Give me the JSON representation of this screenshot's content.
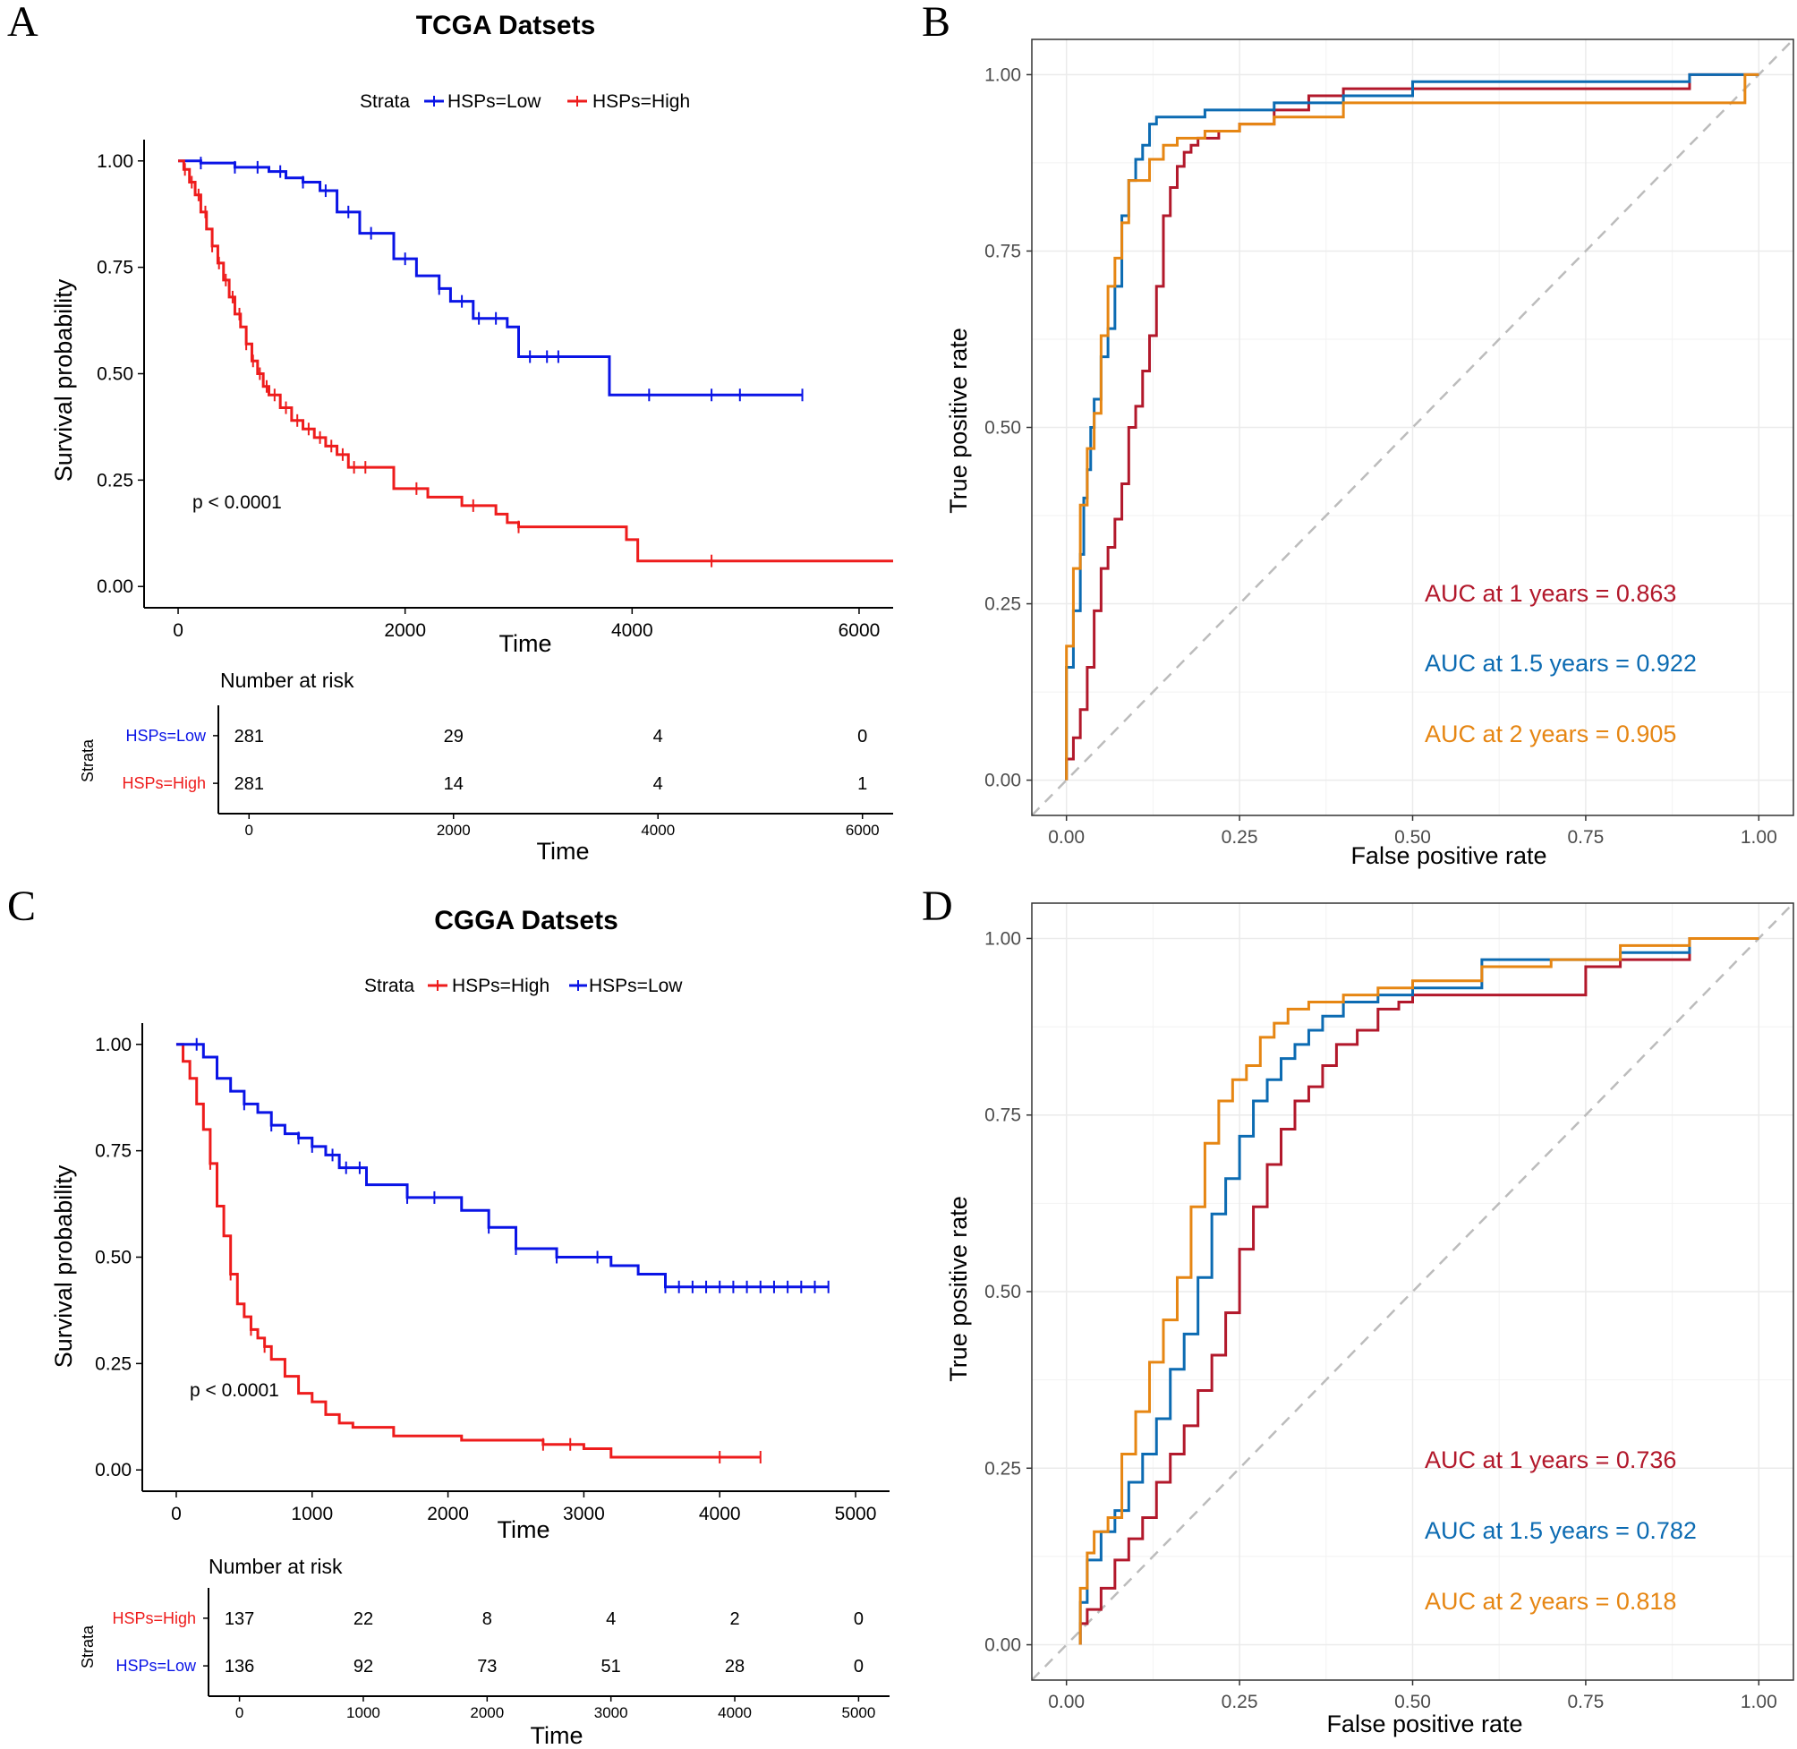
{
  "panel_letters": [
    "A",
    "B",
    "C",
    "D"
  ],
  "colors": {
    "low": "#0a14e6",
    "high": "#ee1c1c",
    "roc_1y": "#b2182b",
    "roc_15y": "#0c6bb2",
    "roc_2y": "#e68613",
    "diag": "#bcbcbc",
    "grid": "#ebebeb",
    "axis": "#333333"
  },
  "chart_data": [
    {
      "panel": "A",
      "type": "line",
      "title": "TCGA Datsets",
      "xlabel": "Time",
      "ylabel": "Survival probability",
      "xlim": [
        -300,
        6300
      ],
      "ylim": [
        -0.05,
        1.05
      ],
      "x_ticks": [
        0,
        2000,
        4000,
        6000
      ],
      "y_ticks": [
        "0.00",
        "0.25",
        "0.50",
        "0.75",
        "1.00"
      ],
      "legend_title": "Strata",
      "annotation": "p < 0.0001",
      "series": [
        {
          "name": "HSPs=Low",
          "color_key": "low",
          "x": [
            0,
            200,
            500,
            800,
            950,
            1100,
            1250,
            1400,
            1600,
            1900,
            2100,
            2300,
            2400,
            2600,
            2900,
            3000,
            3450,
            3800,
            4100,
            5500
          ],
          "y": [
            1.0,
            0.995,
            0.985,
            0.975,
            0.96,
            0.95,
            0.93,
            0.88,
            0.83,
            0.77,
            0.73,
            0.7,
            0.67,
            0.63,
            0.61,
            0.54,
            0.54,
            0.45,
            0.45,
            0.45
          ],
          "censor_x": [
            200,
            500,
            700,
            900,
            1100,
            1300,
            1500,
            1700,
            2000,
            2300,
            2500,
            2650,
            2800,
            3100,
            3250,
            3350,
            4150,
            4700,
            4950,
            5500
          ]
        },
        {
          "name": "HSPs=High",
          "color_key": "high",
          "x": [
            0,
            50,
            100,
            150,
            200,
            250,
            300,
            350,
            400,
            450,
            500,
            550,
            600,
            650,
            700,
            750,
            800,
            900,
            1000,
            1100,
            1200,
            1300,
            1400,
            1500,
            1600,
            1900,
            2200,
            2500,
            2800,
            2900,
            3000,
            3300,
            3500,
            3950,
            4050,
            6300
          ],
          "y": [
            1.0,
            0.98,
            0.95,
            0.92,
            0.88,
            0.84,
            0.8,
            0.76,
            0.72,
            0.68,
            0.64,
            0.61,
            0.57,
            0.53,
            0.5,
            0.47,
            0.45,
            0.42,
            0.39,
            0.37,
            0.35,
            0.33,
            0.31,
            0.28,
            0.28,
            0.23,
            0.21,
            0.19,
            0.17,
            0.15,
            0.14,
            0.14,
            0.14,
            0.11,
            0.06,
            0.06
          ],
          "censor_x": [
            60,
            120,
            180,
            240,
            300,
            360,
            420,
            480,
            540,
            600,
            660,
            720,
            780,
            850,
            950,
            1050,
            1150,
            1250,
            1350,
            1450,
            1550,
            1650,
            2100,
            2600,
            3000,
            4700
          ]
        }
      ],
      "risk_table": {
        "title": "Number at risk",
        "strata_label": "Strata",
        "xlabel": "Time",
        "times": [
          0,
          2000,
          4000,
          6000
        ],
        "rows": [
          {
            "name": "HSPs=Low",
            "color_key": "low",
            "counts": [
              "281",
              "29",
              "4",
              "0"
            ]
          },
          {
            "name": "HSPs=High",
            "color_key": "high",
            "counts": [
              "281",
              "14",
              "4",
              "1"
            ]
          }
        ]
      }
    },
    {
      "panel": "B",
      "type": "line",
      "title": "",
      "xlabel": "False positive rate",
      "ylabel": "True positive rate",
      "xlim": [
        -0.05,
        1.05
      ],
      "ylim": [
        -0.05,
        1.05
      ],
      "ticks": [
        "0.00",
        "0.25",
        "0.50",
        "0.75",
        "1.00"
      ],
      "series": [
        {
          "name": "AUC at 1 years = 0.863",
          "color_key": "roc_1y",
          "x": [
            0,
            0.01,
            0.02,
            0.03,
            0.04,
            0.05,
            0.06,
            0.07,
            0.08,
            0.09,
            0.1,
            0.11,
            0.12,
            0.13,
            0.14,
            0.15,
            0.16,
            0.17,
            0.18,
            0.19,
            0.2,
            0.22,
            0.25,
            0.3,
            0.35,
            0.4,
            0.5,
            0.6,
            0.7,
            0.8,
            0.9,
            1.0
          ],
          "y": [
            0,
            0.03,
            0.06,
            0.1,
            0.16,
            0.24,
            0.3,
            0.33,
            0.37,
            0.42,
            0.5,
            0.53,
            0.58,
            0.63,
            0.7,
            0.8,
            0.84,
            0.87,
            0.89,
            0.9,
            0.91,
            0.91,
            0.92,
            0.93,
            0.95,
            0.97,
            0.98,
            0.98,
            0.98,
            0.98,
            0.98,
            1.0
          ]
        },
        {
          "name": "AUC at 1.5 years = 0.922",
          "color_key": "roc_15y",
          "x": [
            0,
            0.01,
            0.02,
            0.025,
            0.03,
            0.035,
            0.04,
            0.05,
            0.06,
            0.07,
            0.08,
            0.09,
            0.1,
            0.11,
            0.12,
            0.13,
            0.2,
            0.3,
            0.4,
            0.5,
            0.6,
            0.7,
            0.8,
            0.9,
            1.0
          ],
          "y": [
            0,
            0.16,
            0.24,
            0.32,
            0.4,
            0.44,
            0.5,
            0.54,
            0.6,
            0.64,
            0.7,
            0.8,
            0.85,
            0.88,
            0.9,
            0.93,
            0.94,
            0.95,
            0.96,
            0.97,
            0.99,
            0.99,
            0.99,
            0.99,
            1.0
          ]
        },
        {
          "name": "AUC at 2 years = 0.905",
          "color_key": "roc_2y",
          "x": [
            0,
            0.01,
            0.02,
            0.03,
            0.04,
            0.05,
            0.06,
            0.07,
            0.08,
            0.09,
            0.1,
            0.12,
            0.14,
            0.16,
            0.2,
            0.25,
            0.3,
            0.4,
            0.5,
            0.6,
            0.7,
            0.8,
            0.9,
            0.98,
            1.0
          ],
          "y": [
            0,
            0.19,
            0.3,
            0.39,
            0.47,
            0.52,
            0.63,
            0.7,
            0.74,
            0.79,
            0.85,
            0.85,
            0.88,
            0.9,
            0.91,
            0.92,
            0.93,
            0.94,
            0.96,
            0.96,
            0.96,
            0.96,
            0.96,
            0.96,
            1.0
          ]
        }
      ],
      "legend_labels": [
        "AUC at 1 years = 0.863",
        "AUC at 1.5 years = 0.922",
        "AUC at 2 years = 0.905"
      ]
    },
    {
      "panel": "C",
      "type": "line",
      "title": "CGGA Datsets",
      "xlabel": "Time",
      "ylabel": "Survival probability",
      "xlim": [
        -250,
        5250
      ],
      "ylim": [
        -0.05,
        1.05
      ],
      "x_ticks": [
        0,
        1000,
        2000,
        3000,
        4000,
        5000
      ],
      "y_ticks": [
        "0.00",
        "0.25",
        "0.50",
        "0.75",
        "1.00"
      ],
      "legend_title": "Strata",
      "annotation": "p < 0.0001",
      "series": [
        {
          "name": "HSPs=High",
          "color_key": "high",
          "x": [
            0,
            50,
            100,
            150,
            200,
            250,
            300,
            350,
            400,
            450,
            500,
            550,
            600,
            650,
            700,
            800,
            900,
            1000,
            1100,
            1200,
            1300,
            1600,
            2100,
            2700,
            3000,
            3200,
            3500,
            4000,
            4300
          ],
          "y": [
            1.0,
            0.96,
            0.92,
            0.86,
            0.8,
            0.72,
            0.62,
            0.55,
            0.46,
            0.39,
            0.36,
            0.33,
            0.31,
            0.29,
            0.26,
            0.22,
            0.18,
            0.16,
            0.13,
            0.11,
            0.1,
            0.08,
            0.07,
            0.06,
            0.05,
            0.03,
            0.03,
            0.03,
            0.03
          ],
          "censor_x": [
            250,
            400,
            550,
            650,
            2700,
            2900,
            4000,
            4300
          ]
        },
        {
          "name": "HSPs=Low",
          "color_key": "low",
          "x": [
            0,
            200,
            300,
            400,
            500,
            600,
            700,
            800,
            900,
            1000,
            1100,
            1200,
            1400,
            1700,
            2100,
            2300,
            2500,
            2800,
            3000,
            3200,
            3400,
            3600,
            4000,
            4500,
            4800
          ],
          "y": [
            1.0,
            0.97,
            0.92,
            0.89,
            0.86,
            0.84,
            0.81,
            0.79,
            0.78,
            0.76,
            0.74,
            0.71,
            0.67,
            0.64,
            0.61,
            0.57,
            0.52,
            0.5,
            0.5,
            0.48,
            0.46,
            0.43,
            0.43,
            0.43,
            0.43
          ],
          "censor_x": [
            150,
            500,
            700,
            900,
            1000,
            1150,
            1250,
            1350,
            1700,
            1900,
            2300,
            2500,
            2800,
            3100,
            3600,
            3700,
            3800,
            3900,
            4000,
            4100,
            4200,
            4300,
            4400,
            4500,
            4600,
            4700,
            4800
          ]
        }
      ],
      "risk_table": {
        "title": "Number at risk",
        "strata_label": "Strata",
        "xlabel": "Time",
        "times": [
          0,
          1000,
          2000,
          3000,
          4000,
          5000
        ],
        "rows": [
          {
            "name": "HSPs=High",
            "color_key": "high",
            "counts": [
              "137",
              "22",
              "8",
              "4",
              "2",
              "0"
            ]
          },
          {
            "name": "HSPs=Low",
            "color_key": "low",
            "counts": [
              "136",
              "92",
              "73",
              "51",
              "28",
              "0"
            ]
          }
        ]
      }
    },
    {
      "panel": "D",
      "type": "line",
      "title": "",
      "xlabel": "False positive rate",
      "ylabel": "True positive rate",
      "xlim": [
        -0.05,
        1.05
      ],
      "ylim": [
        -0.05,
        1.05
      ],
      "ticks": [
        "0.00",
        "0.25",
        "0.50",
        "0.75",
        "1.00"
      ],
      "series": [
        {
          "name": "AUC at 1 years = 0.736",
          "color_key": "roc_1y",
          "x": [
            0.02,
            0.03,
            0.05,
            0.07,
            0.09,
            0.11,
            0.13,
            0.15,
            0.17,
            0.19,
            0.21,
            0.23,
            0.25,
            0.27,
            0.29,
            0.31,
            0.33,
            0.35,
            0.37,
            0.39,
            0.42,
            0.45,
            0.48,
            0.5,
            0.6,
            0.7,
            0.75,
            0.8,
            0.9,
            1.0
          ],
          "y": [
            0,
            0.03,
            0.05,
            0.08,
            0.12,
            0.15,
            0.18,
            0.23,
            0.27,
            0.31,
            0.36,
            0.41,
            0.47,
            0.56,
            0.62,
            0.68,
            0.73,
            0.77,
            0.79,
            0.82,
            0.85,
            0.87,
            0.9,
            0.91,
            0.92,
            0.92,
            0.92,
            0.96,
            0.97,
            1.0
          ]
        },
        {
          "name": "AUC at 1.5 years = 0.782",
          "color_key": "roc_15y",
          "x": [
            0.02,
            0.03,
            0.05,
            0.07,
            0.09,
            0.11,
            0.13,
            0.15,
            0.17,
            0.19,
            0.21,
            0.23,
            0.25,
            0.27,
            0.29,
            0.31,
            0.33,
            0.35,
            0.37,
            0.4,
            0.45,
            0.5,
            0.6,
            0.7,
            0.8,
            0.9,
            1.0
          ],
          "y": [
            0,
            0.06,
            0.12,
            0.16,
            0.19,
            0.23,
            0.27,
            0.32,
            0.39,
            0.44,
            0.52,
            0.61,
            0.66,
            0.72,
            0.77,
            0.8,
            0.83,
            0.85,
            0.87,
            0.89,
            0.91,
            0.92,
            0.93,
            0.97,
            0.97,
            0.98,
            1.0
          ]
        },
        {
          "name": "AUC at 2 years = 0.818",
          "color_key": "roc_2y",
          "x": [
            0.02,
            0.03,
            0.04,
            0.06,
            0.08,
            0.1,
            0.12,
            0.14,
            0.16,
            0.18,
            0.2,
            0.22,
            0.24,
            0.26,
            0.28,
            0.3,
            0.32,
            0.35,
            0.4,
            0.45,
            0.5,
            0.6,
            0.7,
            0.8,
            0.9,
            1.0
          ],
          "y": [
            0,
            0.08,
            0.13,
            0.16,
            0.18,
            0.27,
            0.33,
            0.4,
            0.46,
            0.52,
            0.62,
            0.71,
            0.77,
            0.8,
            0.82,
            0.86,
            0.88,
            0.9,
            0.91,
            0.92,
            0.93,
            0.94,
            0.96,
            0.97,
            0.99,
            1.0
          ]
        }
      ],
      "legend_labels": [
        "AUC at 1 years = 0.736",
        "AUC at 1.5 years = 0.782",
        "AUC at 2 years = 0.818"
      ]
    }
  ]
}
